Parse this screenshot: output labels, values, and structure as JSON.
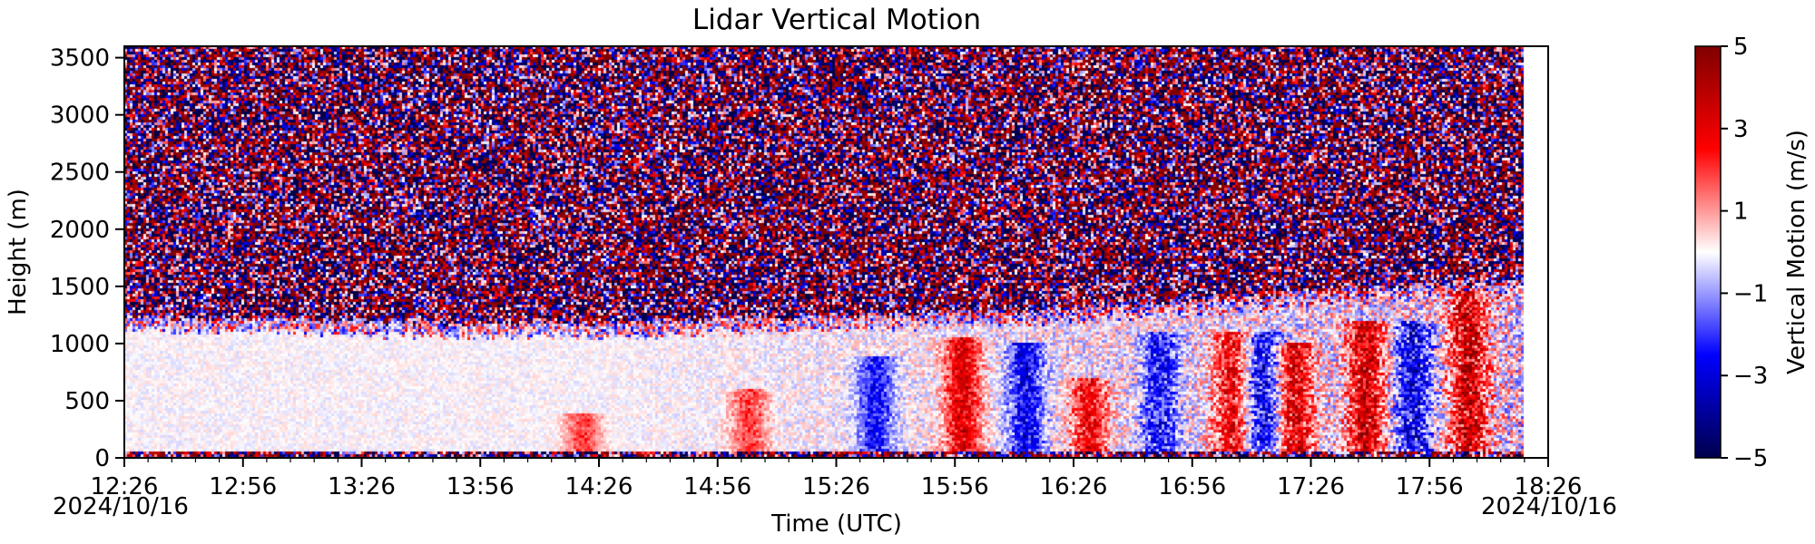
{
  "chart_data": {
    "type": "heatmap",
    "title": "Lidar Vertical Motion",
    "xlabel": "Time (UTC)",
    "ylabel": "Height (m)",
    "colorbar_label": "Vertical Motion (m/s)",
    "colormap": "seismic",
    "colormap_colors": [
      "#00004c",
      "#0000ff",
      "#ffffff",
      "#ff0000",
      "#800000"
    ],
    "x_ticks": [
      "12:26",
      "12:56",
      "13:26",
      "13:56",
      "14:26",
      "14:56",
      "15:26",
      "15:56",
      "16:26",
      "16:56",
      "17:26",
      "17:56",
      "18:26"
    ],
    "x_range": [
      "12:26",
      "18:26"
    ],
    "data_end_time": "18:20",
    "date_start": "2024/10/16",
    "date_end": "2024/10/16",
    "y_ticks": [
      0,
      500,
      1000,
      1500,
      2000,
      2500,
      3000,
      3500
    ],
    "ylim": [
      0,
      3600
    ],
    "colorbar_ticks": [
      5,
      3,
      1,
      -1,
      -3,
      -5
    ],
    "clim": [
      -5,
      5
    ],
    "noise_top_height_by_hour": [
      {
        "time": "12:26",
        "height": 1250
      },
      {
        "time": "13:26",
        "height": 1200
      },
      {
        "time": "14:26",
        "height": 1180
      },
      {
        "time": "15:26",
        "height": 1250
      },
      {
        "time": "16:26",
        "height": 1300
      },
      {
        "time": "17:26",
        "height": 1450
      },
      {
        "time": "18:20",
        "height": 1550
      }
    ],
    "updraft_plumes": [
      {
        "time": "14:22",
        "top_height": 400,
        "peak_velocity": 2.5
      },
      {
        "time": "15:04",
        "top_height": 600,
        "peak_velocity": 2.5
      },
      {
        "time": "15:58",
        "top_height": 1050,
        "peak_velocity": 4
      },
      {
        "time": "16:30",
        "top_height": 700,
        "peak_velocity": 3.5
      },
      {
        "time": "17:06",
        "top_height": 1100,
        "peak_velocity": 3.5
      },
      {
        "time": "17:22",
        "top_height": 1000,
        "peak_velocity": 4
      },
      {
        "time": "17:40",
        "top_height": 1200,
        "peak_velocity": 4.5
      },
      {
        "time": "18:06",
        "top_height": 1450,
        "peak_velocity": 4.5
      }
    ],
    "downdraft_bands": [
      {
        "time": "15:36",
        "top_height": 900,
        "peak_velocity": -3
      },
      {
        "time": "16:14",
        "top_height": 1000,
        "peak_velocity": -3.5
      },
      {
        "time": "16:48",
        "top_height": 1100,
        "peak_velocity": -3
      },
      {
        "time": "17:14",
        "top_height": 1100,
        "peak_velocity": -3.5
      },
      {
        "time": "17:52",
        "top_height": 1200,
        "peak_velocity": -3.5
      }
    ],
    "grid": false
  }
}
